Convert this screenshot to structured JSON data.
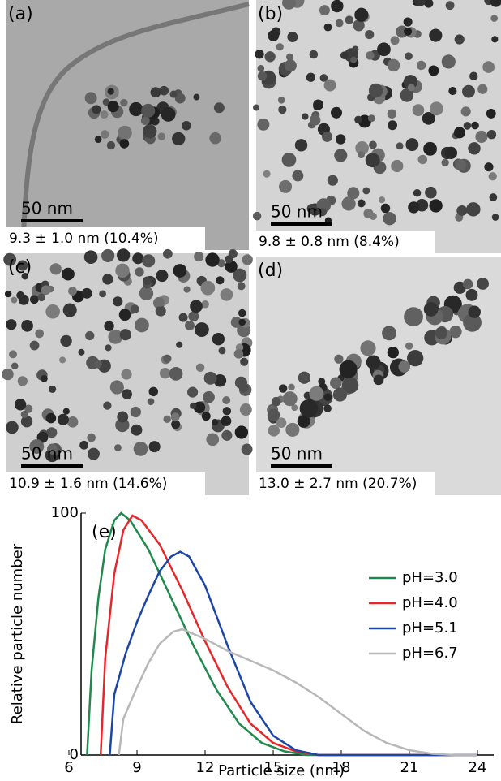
{
  "panels": [
    {
      "label": "(a)",
      "scale": "50 nm",
      "caption": "9.3 ± 1.0 nm (10.4%)"
    },
    {
      "label": "(b)",
      "scale": "50 nm",
      "caption": "9.8 ± 0.8 nm (8.4%)"
    },
    {
      "label": "(c)",
      "scale": "50 nm",
      "caption": "10.9 ± 1.6 nm (14.6%)"
    },
    {
      "label": "(d)",
      "scale": "50 nm",
      "caption": "13.0 ± 2.7 nm (20.7%)"
    }
  ],
  "chart_data": {
    "type": "line",
    "annotation": "(e)",
    "x_label": "Particle size (nm)",
    "y_label": "Relative particle number",
    "xlim": [
      6,
      24
    ],
    "xticks": [
      6,
      9,
      12,
      15,
      18,
      21,
      24
    ],
    "ylim": [
      0,
      100
    ],
    "yticks": [
      0,
      100
    ],
    "legend": "right",
    "series": [
      {
        "name": "pH=3.0",
        "color": "#1f8a4c",
        "x": [
          6.8,
          7.0,
          7.3,
          7.6,
          8.0,
          8.3,
          8.7,
          9.5,
          10.5,
          11.5,
          12.5,
          13.5,
          14.5,
          15.5,
          16.5,
          24
        ],
        "values": [
          0,
          35,
          65,
          85,
          97,
          100,
          97,
          85,
          65,
          45,
          27,
          13,
          5,
          1.5,
          0,
          0
        ]
      },
      {
        "name": "pH=4.0",
        "color": "#e8262a",
        "x": [
          7.4,
          7.6,
          8.0,
          8.4,
          8.8,
          9.2,
          10,
          11,
          12,
          13,
          14,
          15,
          16,
          17,
          24
        ],
        "values": [
          0,
          40,
          75,
          93,
          99,
          97,
          87,
          68,
          47,
          28,
          13,
          5,
          1.5,
          0,
          0
        ]
      },
      {
        "name": "pH=5.1",
        "color": "#1c45a8",
        "x": [
          7.8,
          8.0,
          8.5,
          9.0,
          9.5,
          10,
          10.5,
          10.9,
          11.3,
          12,
          13,
          14,
          15,
          16,
          17,
          24
        ],
        "values": [
          0,
          25,
          42,
          55,
          66,
          76,
          82,
          84,
          82,
          70,
          45,
          22,
          8,
          2,
          0,
          0
        ]
      },
      {
        "name": "pH=6.7",
        "color": "#b8b8b8",
        "x": [
          8.2,
          8.4,
          9,
          9.5,
          10,
          10.6,
          11,
          12,
          13,
          14,
          15,
          16,
          17,
          18,
          19,
          20,
          21,
          22,
          23,
          24
        ],
        "values": [
          0,
          15,
          28,
          38,
          46,
          51,
          52,
          48,
          43,
          39,
          35,
          30,
          24,
          17,
          10,
          5,
          2,
          0.5,
          0,
          0
        ]
      }
    ]
  }
}
